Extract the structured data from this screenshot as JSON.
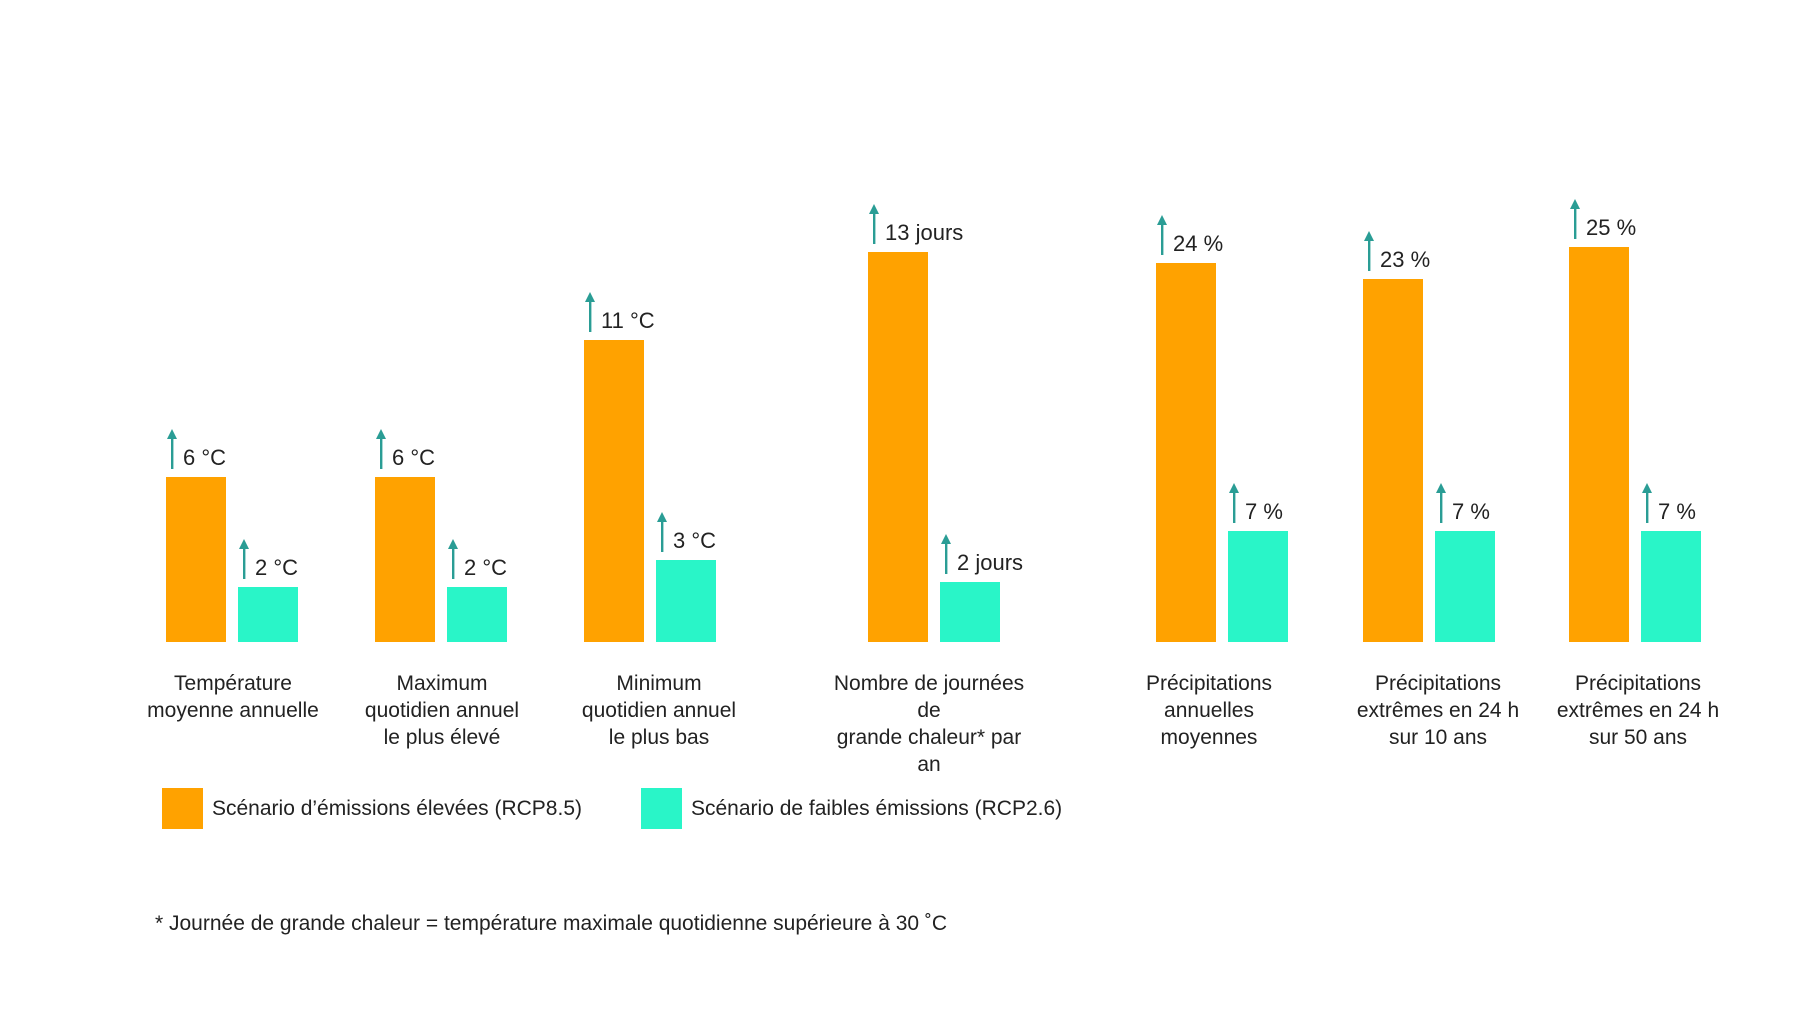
{
  "chart_data": {
    "type": "bar",
    "categories": [
      [
        "Température",
        "moyenne annuelle"
      ],
      [
        "Maximum",
        "quotidien annuel",
        "le plus élevé"
      ],
      [
        "Minimum",
        "quotidien annuel",
        "le plus bas"
      ],
      [
        "Nombre de journées de",
        "grande chaleur* par an"
      ],
      [
        "Précipitations",
        "annuelles",
        "moyennes"
      ],
      [
        "Précipitations",
        "extrêmes en 24 h",
        "sur 10 ans"
      ],
      [
        "Précipitations",
        "extrêmes en 24 h",
        "sur 50 ans"
      ]
    ],
    "units": [
      "°C",
      "°C",
      "°C",
      "jours",
      "%",
      "%",
      "%"
    ],
    "series": [
      {
        "name": "Scénario d’émissions élevées (RCP8.5)",
        "color": "#FFA200",
        "values": [
          6,
          6,
          11,
          13,
          24,
          23,
          25
        ],
        "labels": [
          "6 °C",
          "6 °C",
          "11 °C",
          "13 jours",
          "24 %",
          "23 %",
          "25 %"
        ]
      },
      {
        "name": "Scénario de faibles émissions (RCP2.6)",
        "color": "#29F5C8",
        "values": [
          2,
          2,
          3,
          2,
          7,
          7,
          7
        ],
        "labels": [
          "2 °C",
          "2 °C",
          "3 °C",
          "2 jours",
          "7 %",
          "7 %",
          "7 %"
        ]
      }
    ],
    "arrow_color": "#2A9D95",
    "icon": "arrow-up-icon",
    "legend_position": "bottom-left",
    "grid": false,
    "footnote": "* Journée de grande chaleur = température maximale quotidienne supérieure à 30 ˚C"
  }
}
